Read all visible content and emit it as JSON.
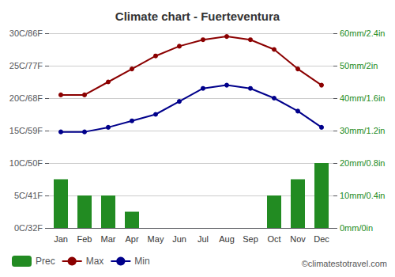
{
  "chart_data": {
    "type": "bar",
    "title": "Climate chart - Fuerteventura",
    "categories": [
      "Jan",
      "Feb",
      "Mar",
      "Apr",
      "May",
      "Jun",
      "Jul",
      "Aug",
      "Sep",
      "Oct",
      "Nov",
      "Dec"
    ],
    "series": [
      {
        "name": "Prec",
        "type": "bar",
        "axis": "y2",
        "color": "#228B22",
        "values": [
          15,
          10,
          10,
          5,
          0,
          0,
          0,
          0,
          0,
          10,
          15,
          20
        ]
      },
      {
        "name": "Max",
        "type": "line",
        "marker": "circle",
        "color": "#8B0000",
        "values": [
          20.5,
          20.5,
          22.5,
          24.5,
          26.5,
          28.0,
          29.0,
          29.5,
          29.0,
          27.5,
          24.5,
          22.0
        ]
      },
      {
        "name": "Min",
        "type": "line",
        "marker": "circle",
        "color": "#00008B",
        "values": [
          14.8,
          14.8,
          15.5,
          16.5,
          17.5,
          19.5,
          21.5,
          22.0,
          21.5,
          20.0,
          18.0,
          15.5
        ]
      }
    ],
    "ylim": [
      0,
      30
    ],
    "yticks": [
      {
        "value": 0,
        "label": "0C/32F"
      },
      {
        "value": 5,
        "label": "5C/41F"
      },
      {
        "value": 10,
        "label": "10C/50F"
      },
      {
        "value": 15,
        "label": "15C/59F"
      },
      {
        "value": 20,
        "label": "20C/68F"
      },
      {
        "value": 25,
        "label": "25C/77F"
      },
      {
        "value": 30,
        "label": "30C/86F"
      }
    ],
    "y2lim": [
      0,
      60
    ],
    "y2ticks": [
      {
        "value": 0,
        "label": "0mm/0in"
      },
      {
        "value": 10,
        "label": "10mm/0.4in"
      },
      {
        "value": 20,
        "label": "20mm/0.8in"
      },
      {
        "value": 30,
        "label": "30mm/1.2in"
      },
      {
        "value": 40,
        "label": "40mm/1.6in"
      },
      {
        "value": 50,
        "label": "50mm/2in"
      },
      {
        "value": 60,
        "label": "60mm/2.4in"
      }
    ],
    "grid": true,
    "legend": "lower left",
    "annotations": [
      "©climatestotravel.com"
    ]
  }
}
